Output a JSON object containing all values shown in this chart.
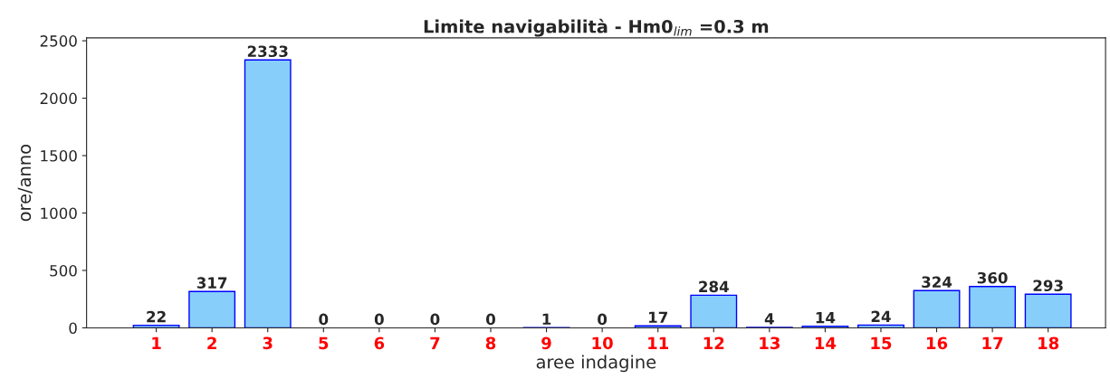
{
  "chart_data": {
    "type": "bar",
    "title": "Limite navigabilità - Hm0$_{lim}$ =0.3 m",
    "xlabel": "aree indagine",
    "ylabel": "ore/anno",
    "categories": [
      "1",
      "2",
      "3",
      "5",
      "6",
      "7",
      "8",
      "9",
      "10",
      "11",
      "12",
      "13",
      "14",
      "15",
      "16",
      "17",
      "18"
    ],
    "values": [
      22,
      317,
      2333,
      0,
      0,
      0,
      0,
      1,
      0,
      17,
      284,
      4,
      14,
      24,
      324,
      360,
      293
    ],
    "color": "#87cefa",
    "ylim": [
      0,
      2525
    ],
    "yticks": [
      0,
      500,
      1000,
      1500,
      2000,
      2500
    ],
    "grid": false,
    "data_labels": true
  }
}
